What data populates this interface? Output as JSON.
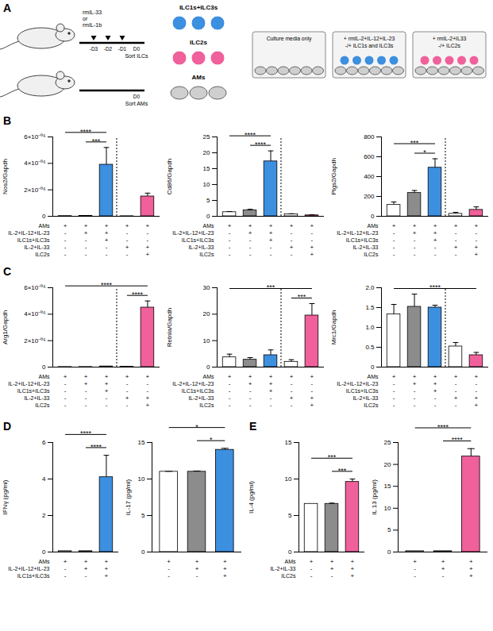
{
  "diagram": {
    "panel": "A",
    "mice": [
      {
        "treatment": [
          "rmIL-33",
          "or",
          "rmIL-1b"
        ],
        "days": [
          "-D3",
          "-D2",
          "-D1",
          "D0"
        ],
        "action": "Sort ILCs"
      },
      {
        "days": [
          "D0"
        ],
        "action": "Sort AMs"
      }
    ],
    "cells": [
      "ILC1s+ILC3s",
      "ILC2s",
      "AMs"
    ],
    "wells": [
      {
        "lines": [
          "Culture media only"
        ]
      },
      {
        "lines": [
          "+ rmIL-2+IL-12+IL-23",
          "-/+ ILC1s and ILC3s"
        ]
      },
      {
        "lines": [
          "+ rmIL-2+IL33",
          "-/+ ILC2s"
        ]
      }
    ]
  },
  "chart_data": [
    {
      "type": "bar",
      "panel": "B",
      "ylabel": "Nos2/Gapdh",
      "categories": [
        null,
        null,
        null,
        null,
        null
      ],
      "values": [
        2e-08,
        3e-08,
        3.9e-06,
        1e-08,
        1.5e-06
      ],
      "errors": [
        0,
        0,
        1.3e-06,
        0,
        2.5e-07
      ],
      "colors": [
        "#ffffff",
        "#8c8c8c",
        "#3d8fe0",
        "#ffffff",
        "#f0609a"
      ],
      "ylim": [
        0,
        6e-06
      ],
      "yticks": [
        0,
        {
          "value": 2e-06,
          "label": "2×10⁻⁰⁶"
        },
        {
          "value": 4e-06,
          "label": "4×10⁻⁰⁶"
        },
        {
          "value": 6e-06,
          "label": "6×10⁻⁰⁶"
        }
      ],
      "significance": [
        {
          "from": 0,
          "to": 2,
          "label": "****"
        },
        {
          "from": 1,
          "to": 2,
          "label": "***"
        }
      ],
      "conditions": [
        {
          "label": "AMs",
          "marks": [
            "+",
            "+",
            "+",
            "+",
            "+"
          ]
        },
        {
          "label": "IL-2+IL-12+IL-23",
          "marks": [
            "-",
            "+",
            "+",
            "-",
            "-"
          ]
        },
        {
          "label": "ILC1s+ILC3s",
          "marks": [
            "-",
            "-",
            "+",
            "-",
            "-"
          ]
        },
        {
          "label": "IL-2+IL-33",
          "marks": [
            "-",
            "-",
            "-",
            "+",
            "+"
          ]
        },
        {
          "label": "ILC2s",
          "marks": [
            "-",
            "-",
            "-",
            "-",
            "+"
          ]
        }
      ]
    },
    {
      "type": "bar",
      "ylabel": "Cd86/Gapdh",
      "categories": [
        null,
        null,
        null,
        null,
        null
      ],
      "values": [
        1.3,
        1.9,
        17.3,
        0.6,
        0.3
      ],
      "errors": [
        0.2,
        0.3,
        3.3,
        0.2,
        0.2
      ],
      "colors": [
        "#ffffff",
        "#8c8c8c",
        "#3d8fe0",
        "#ffffff",
        "#f0609a"
      ],
      "ylim": [
        0,
        25
      ],
      "yticks": [
        0,
        5,
        10,
        15,
        20,
        25
      ],
      "significance": [
        {
          "from": 0,
          "to": 2,
          "label": "****"
        },
        {
          "from": 1,
          "to": 2,
          "label": "****"
        }
      ],
      "conditions": [
        {
          "label": "AMs",
          "marks": [
            "+",
            "+",
            "+",
            "+",
            "+"
          ]
        },
        {
          "label": "IL-2+IL-12+IL-23",
          "marks": [
            "-",
            "+",
            "+",
            "-",
            "-"
          ]
        },
        {
          "label": "ILC1s+ILC3s",
          "marks": [
            "-",
            "-",
            "+",
            "-",
            "-"
          ]
        },
        {
          "label": "IL-2+IL-33",
          "marks": [
            "-",
            "-",
            "-",
            "+",
            "+"
          ]
        },
        {
          "label": "ILC2s",
          "marks": [
            "-",
            "-",
            "-",
            "-",
            "+"
          ]
        }
      ]
    },
    {
      "type": "bar",
      "ylabel": "Ptgs2/Gapdh",
      "categories": [
        null,
        null,
        null,
        null,
        null
      ],
      "values": [
        115,
        235,
        490,
        25,
        65
      ],
      "errors": [
        30,
        25,
        90,
        15,
        30
      ],
      "colors": [
        "#ffffff",
        "#8c8c8c",
        "#3d8fe0",
        "#ffffff",
        "#f0609a"
      ],
      "ylim": [
        0,
        800
      ],
      "yticks": [
        0,
        200,
        400,
        600,
        800
      ],
      "significance": [
        {
          "from": 0,
          "to": 2,
          "label": "***"
        },
        {
          "from": 1,
          "to": 2,
          "label": "*"
        }
      ],
      "conditions": [
        {
          "label": "AMs",
          "marks": [
            "+",
            "+",
            "+",
            "+",
            "+"
          ]
        },
        {
          "label": "IL-2+IL-12+IL-23",
          "marks": [
            "-",
            "+",
            "+",
            "-",
            "-"
          ]
        },
        {
          "label": "ILC1s+ILC3s",
          "marks": [
            "-",
            "-",
            "+",
            "-",
            "-"
          ]
        },
        {
          "label": "IL-2+IL-33",
          "marks": [
            "-",
            "-",
            "-",
            "+",
            "+"
          ]
        },
        {
          "label": "ILC2s",
          "marks": [
            "-",
            "-",
            "-",
            "-",
            "+"
          ]
        }
      ]
    },
    {
      "type": "bar",
      "panel": "C",
      "ylabel": "Arg1/Gapdh",
      "categories": [
        null,
        null,
        null,
        null,
        null
      ],
      "values": [
        1e-08,
        1e-08,
        5e-08,
        3e-08,
        4.5e-06
      ],
      "errors": [
        0,
        0,
        1e-08,
        1e-08,
        5e-07
      ],
      "colors": [
        "#ffffff",
        "#8c8c8c",
        "#3d8fe0",
        "#ffffff",
        "#f0609a"
      ],
      "ylim": [
        0,
        6e-06
      ],
      "yticks": [
        0,
        {
          "value": 2e-06,
          "label": "2×10⁻⁰⁶"
        },
        {
          "value": 4e-06,
          "label": "4×10⁻⁰⁶"
        },
        {
          "value": 6e-06,
          "label": "6×10⁻⁰⁶"
        }
      ],
      "significance": [
        {
          "from": 0,
          "to": 4,
          "label": "****"
        },
        {
          "from": 3,
          "to": 4,
          "label": "****"
        }
      ],
      "conditions": [
        {
          "label": "AMs",
          "marks": [
            "+",
            "+",
            "+",
            "+",
            "+"
          ]
        },
        {
          "label": "IL-2+IL-12+IL-23",
          "marks": [
            "-",
            "+",
            "+",
            "-",
            "-"
          ]
        },
        {
          "label": "ILC1s+ILC3s",
          "marks": [
            "-",
            "-",
            "+",
            "-",
            "-"
          ]
        },
        {
          "label": "IL-2+IL-33",
          "marks": [
            "-",
            "-",
            "-",
            "+",
            "+"
          ]
        },
        {
          "label": "ILC2s",
          "marks": [
            "-",
            "-",
            "-",
            "-",
            "+"
          ]
        }
      ]
    },
    {
      "type": "bar",
      "ylabel": "Retnla/Gapdh",
      "categories": [
        null,
        null,
        null,
        null,
        null
      ],
      "values": [
        3.7,
        2.8,
        4.5,
        2.0,
        19.5
      ],
      "errors": [
        1.2,
        0.8,
        2.0,
        0.8,
        4.5
      ],
      "colors": [
        "#ffffff",
        "#8c8c8c",
        "#3d8fe0",
        "#ffffff",
        "#f0609a"
      ],
      "ylim": [
        0,
        30
      ],
      "yticks": [
        0,
        10,
        20,
        30
      ],
      "significance": [
        {
          "from": 0,
          "to": 4,
          "label": "***"
        },
        {
          "from": 3,
          "to": 4,
          "label": "***"
        }
      ],
      "conditions": [
        {
          "label": "AMs",
          "marks": [
            "+",
            "+",
            "+",
            "+",
            "+"
          ]
        },
        {
          "label": "IL-2+IL-12+IL-23",
          "marks": [
            "-",
            "+",
            "+",
            "-",
            "-"
          ]
        },
        {
          "label": "ILC1s+ILC3s",
          "marks": [
            "-",
            "-",
            "+",
            "-",
            "-"
          ]
        },
        {
          "label": "IL-2+IL-33",
          "marks": [
            "-",
            "-",
            "-",
            "+",
            "+"
          ]
        },
        {
          "label": "ILC2s",
          "marks": [
            "-",
            "-",
            "-",
            "-",
            "+"
          ]
        }
      ]
    },
    {
      "type": "bar",
      "ylabel": "Mrc1/Gapdh",
      "categories": [
        null,
        null,
        null,
        null,
        null
      ],
      "values": [
        1.33,
        1.52,
        1.5,
        0.52,
        0.3
      ],
      "errors": [
        0.25,
        0.32,
        0.06,
        0.1,
        0.07
      ],
      "colors": [
        "#ffffff",
        "#8c8c8c",
        "#3d8fe0",
        "#ffffff",
        "#f0609a"
      ],
      "ylim": [
        0,
        2
      ],
      "yticks": [
        0,
        0.5,
        {
          "value": 1,
          "label": "1.0"
        },
        1.5,
        {
          "value": 2,
          "label": "2.0"
        }
      ],
      "significance": [
        {
          "from": 0,
          "to": 4,
          "label": "****"
        }
      ],
      "conditions": [
        {
          "label": "AMs",
          "marks": [
            "+",
            "+",
            "+",
            "+",
            "+"
          ]
        },
        {
          "label": "IL-2+IL-12+IL-23",
          "marks": [
            "-",
            "+",
            "+",
            "-",
            "-"
          ]
        },
        {
          "label": "ILC1s+ILC3s",
          "marks": [
            "-",
            "-",
            "+",
            "-",
            "-"
          ]
        },
        {
          "label": "IL-2+IL-33",
          "marks": [
            "-",
            "-",
            "-",
            "+",
            "+"
          ]
        },
        {
          "label": "ILC2s",
          "marks": [
            "-",
            "-",
            "-",
            "-",
            "+"
          ]
        }
      ]
    },
    {
      "type": "bar",
      "panel": "D",
      "ylabel": "IFNγ (pg/ml)",
      "categories": [
        null,
        null,
        null
      ],
      "values": [
        0.05,
        0.05,
        4.1
      ],
      "errors": [
        0,
        0,
        1.2
      ],
      "colors": [
        "#ffffff",
        "#8c8c8c",
        "#3d8fe0"
      ],
      "ylim": [
        0,
        6
      ],
      "yticks": [
        0,
        2,
        4,
        6
      ],
      "significance": [
        {
          "from": 0,
          "to": 2,
          "label": "****"
        },
        {
          "from": 1,
          "to": 2,
          "label": "****"
        }
      ],
      "conditions": [
        {
          "label": "AMs",
          "marks": [
            "+",
            "+",
            "+"
          ]
        },
        {
          "label": "IL-2+IL-12+IL-23",
          "marks": [
            "-",
            "+",
            "+"
          ]
        },
        {
          "label": "ILC1s+ILC3s",
          "marks": [
            "-",
            "-",
            "+"
          ]
        }
      ]
    },
    {
      "type": "bar",
      "ylabel": "IL-17 (pg/ml)",
      "categories": [
        null,
        null,
        null
      ],
      "values": [
        11,
        11,
        14
      ],
      "errors": [
        0.05,
        0.1,
        0.2
      ],
      "colors": [
        "#ffffff",
        "#8c8c8c",
        "#3d8fe0"
      ],
      "ylim": [
        0,
        15
      ],
      "yticks": [
        0,
        5,
        10,
        15
      ],
      "significance": [
        {
          "from": 0,
          "to": 2,
          "label": "*"
        },
        {
          "from": 1,
          "to": 2,
          "label": "*"
        }
      ],
      "conditions": [
        {
          "marks": [
            "+",
            "+",
            "+"
          ]
        },
        {
          "marks": [
            "-",
            "+",
            "+"
          ]
        },
        {
          "marks": [
            "-",
            "-",
            "+"
          ]
        }
      ]
    },
    {
      "type": "bar",
      "panel": "E",
      "ylabel": "IL-4 (pg/ml)",
      "categories": [
        null,
        null,
        null
      ],
      "values": [
        6.6,
        6.6,
        9.6
      ],
      "errors": [
        0,
        0.1,
        0.4
      ],
      "colors": [
        "#ffffff",
        "#8c8c8c",
        "#f0609a"
      ],
      "ylim": [
        0,
        15
      ],
      "yticks": [
        0,
        5,
        10,
        15
      ],
      "significance": [
        {
          "from": 0,
          "to": 2,
          "label": "***"
        },
        {
          "from": 1,
          "to": 2,
          "label": "***"
        }
      ],
      "conditions": [
        {
          "label": "AMs",
          "marks": [
            "+",
            "+",
            "+"
          ]
        },
        {
          "label": "IL-2+IL-33",
          "marks": [
            "-",
            "+",
            "+"
          ]
        },
        {
          "label": "ILC2s",
          "marks": [
            "-",
            "-",
            "+"
          ]
        }
      ]
    },
    {
      "type": "bar",
      "ylabel": "IL 13 (pg/ml)",
      "categories": [
        null,
        null,
        null
      ],
      "values": [
        0.2,
        0.2,
        21.8
      ],
      "errors": [
        0,
        0,
        1.8
      ],
      "colors": [
        "#ffffff",
        "#8c8c8c",
        "#f0609a"
      ],
      "ylim": [
        0,
        25
      ],
      "yticks": [
        0,
        5,
        10,
        15,
        20,
        25
      ],
      "significance": [
        {
          "from": 0,
          "to": 2,
          "label": "****"
        },
        {
          "from": 1,
          "to": 2,
          "label": "****"
        }
      ],
      "conditions": [
        {
          "marks": [
            "+",
            "+",
            "+"
          ]
        },
        {
          "marks": [
            "-",
            "+",
            "+"
          ]
        },
        {
          "marks": [
            "-",
            "-",
            "+"
          ]
        }
      ]
    }
  ]
}
